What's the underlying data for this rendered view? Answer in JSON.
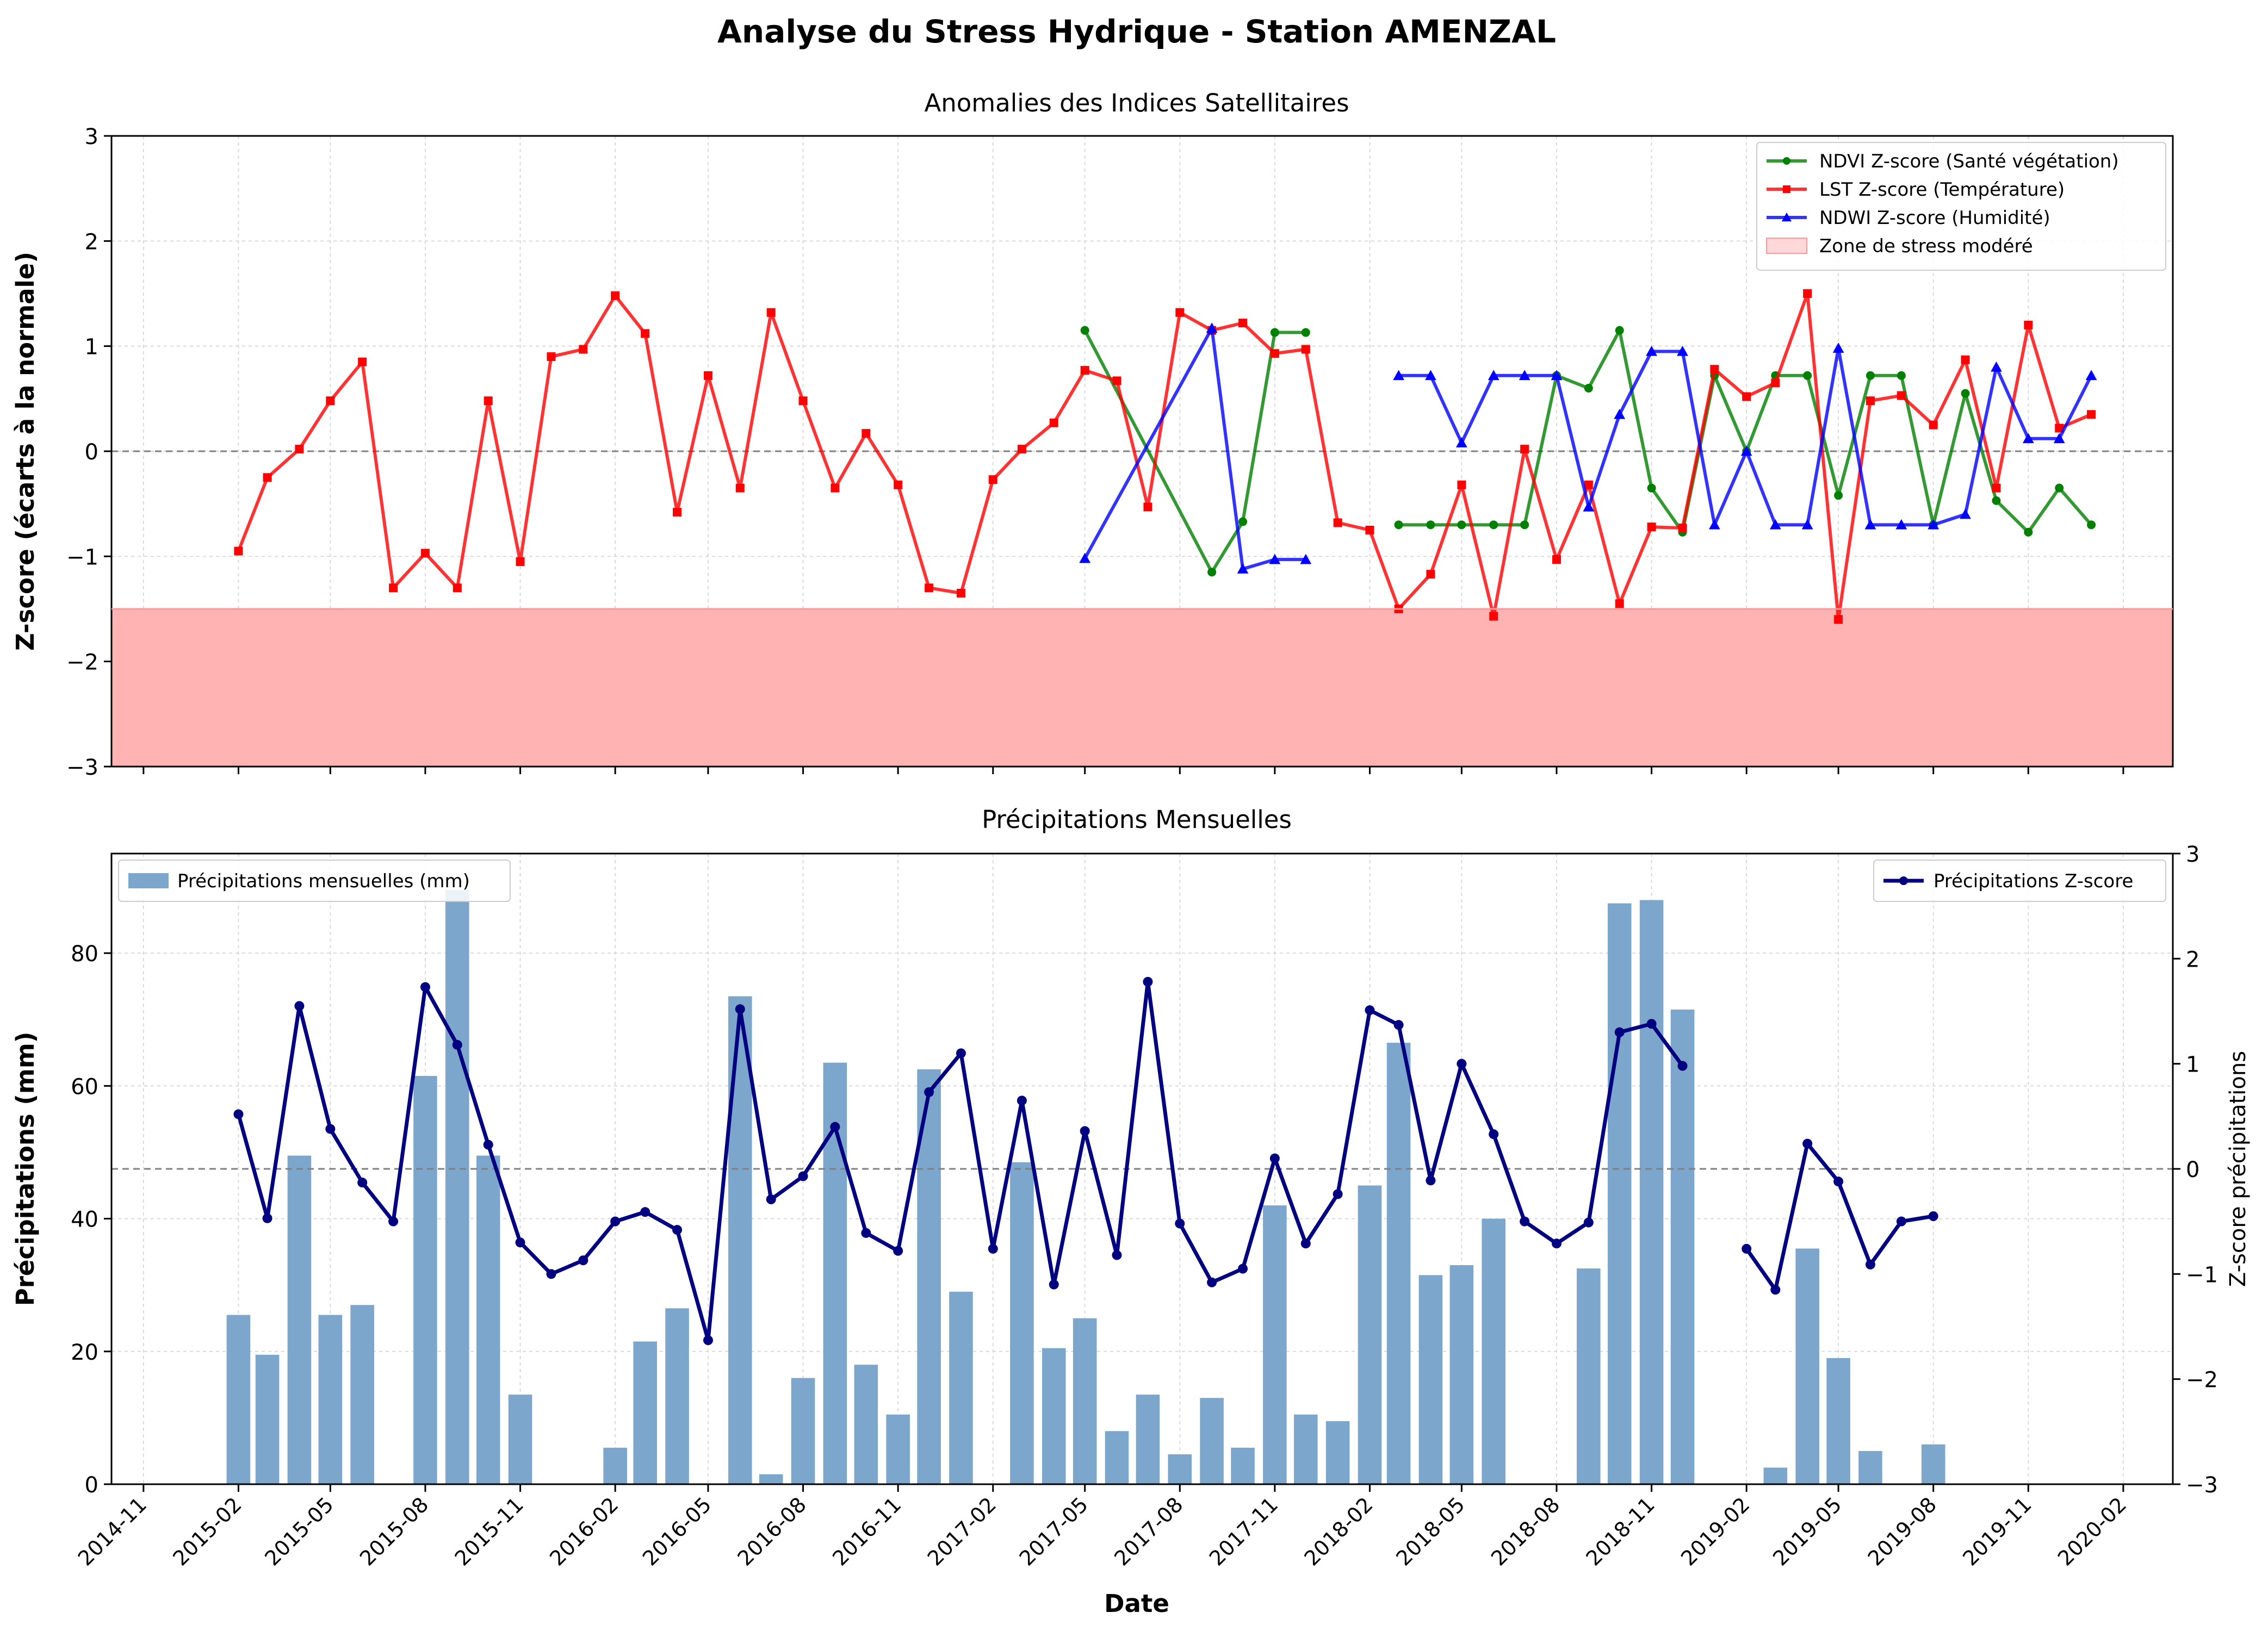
{
  "figure": {
    "suptitle": "Analyse du Stress Hydrique - Station AMENZAL"
  },
  "colors": {
    "ndvi": "#008000",
    "lst": "#ff0000",
    "ndwi": "#0000ff",
    "stress_zone": "#ffb3b3",
    "precip_bar": "#7ca6cc",
    "precip_z": "#000080",
    "zero_line": "#808080",
    "grid": "#d9d9d9"
  },
  "x_axis": {
    "label": "Date",
    "ticks": [
      "2014-11",
      "2015-02",
      "2015-05",
      "2015-08",
      "2015-11",
      "2016-02",
      "2016-05",
      "2016-08",
      "2016-11",
      "2017-02",
      "2017-05",
      "2017-08",
      "2017-11",
      "2018-02",
      "2018-05",
      "2018-08",
      "2018-11",
      "2019-02",
      "2019-05",
      "2019-08",
      "2019-11",
      "2020-02"
    ]
  },
  "chart_data": [
    {
      "type": "line",
      "title": "Anomalies des Indices Satellitaires",
      "xlabel": "",
      "ylabel": "Z-score (écarts à la normale)",
      "ylim": [
        -3,
        3
      ],
      "yticks": [
        -3,
        -2,
        -1,
        0,
        1,
        2,
        3
      ],
      "grid": true,
      "legend_position": "top-right",
      "stress_zone": {
        "label": "Zone de stress modéré",
        "range": [
          -3,
          -1.5
        ]
      },
      "reference_line": 0,
      "series": [
        {
          "name": "NDVI Z-score (Santé végétation)",
          "marker": "circle",
          "points": [
            [
              "2017-05-01",
              1.15
            ],
            [
              "2017-09-01",
              -1.15
            ],
            [
              "2017-10-01",
              -0.67
            ],
            [
              "2017-11-01",
              1.13
            ],
            [
              "2017-12-01",
              1.13
            ],
            [
              "2018-02-01",
              null
            ],
            [
              "2018-03-01",
              -0.7
            ],
            [
              "2018-04-01",
              -0.7
            ],
            [
              "2018-05-01",
              -0.7
            ],
            [
              "2018-06-01",
              -0.7
            ],
            [
              "2018-07-01",
              -0.7
            ],
            [
              "2018-08-01",
              0.72
            ],
            [
              "2018-09-01",
              0.6
            ],
            [
              "2018-10-01",
              1.15
            ],
            [
              "2018-11-01",
              -0.35
            ],
            [
              "2018-12-01",
              -0.77
            ],
            [
              "2019-01-01",
              0.72
            ],
            [
              "2019-02-01",
              0.0
            ],
            [
              "2019-03-01",
              0.72
            ],
            [
              "2019-04-01",
              0.72
            ],
            [
              "2019-05-01",
              -0.42
            ],
            [
              "2019-06-01",
              0.72
            ],
            [
              "2019-07-01",
              0.72
            ],
            [
              "2019-08-01",
              -0.7
            ],
            [
              "2019-09-01",
              0.55
            ],
            [
              "2019-10-01",
              -0.47
            ],
            [
              "2019-11-01",
              -0.77
            ],
            [
              "2019-12-01",
              -0.35
            ],
            [
              "2020-01-01",
              -0.7
            ]
          ]
        },
        {
          "name": "LST Z-score (Température)",
          "marker": "square",
          "points": [
            [
              "2015-02-01",
              -0.95
            ],
            [
              "2015-03-01",
              -0.25
            ],
            [
              "2015-04-01",
              0.02
            ],
            [
              "2015-05-01",
              0.48
            ],
            [
              "2015-06-01",
              0.85
            ],
            [
              "2015-07-01",
              -1.3
            ],
            [
              "2015-08-01",
              -0.97
            ],
            [
              "2015-09-01",
              -1.3
            ],
            [
              "2015-10-01",
              0.48
            ],
            [
              "2015-11-01",
              -1.05
            ],
            [
              "2015-12-01",
              0.9
            ],
            [
              "2016-01-01",
              0.97
            ],
            [
              "2016-02-01",
              1.48
            ],
            [
              "2016-03-01",
              1.12
            ],
            [
              "2016-04-01",
              -0.58
            ],
            [
              "2016-05-01",
              0.72
            ],
            [
              "2016-06-01",
              -0.35
            ],
            [
              "2016-07-01",
              1.32
            ],
            [
              "2016-08-01",
              0.48
            ],
            [
              "2016-09-01",
              -0.35
            ],
            [
              "2016-10-01",
              0.17
            ],
            [
              "2016-11-01",
              -0.32
            ],
            [
              "2016-12-01",
              -1.3
            ],
            [
              "2017-01-01",
              -1.35
            ],
            [
              "2017-02-01",
              -0.27
            ],
            [
              "2017-03-01",
              0.02
            ],
            [
              "2017-04-01",
              0.27
            ],
            [
              "2017-05-01",
              0.77
            ],
            [
              "2017-06-01",
              0.67
            ],
            [
              "2017-07-01",
              -0.53
            ],
            [
              "2017-08-01",
              1.32
            ],
            [
              "2017-09-01",
              1.15
            ],
            [
              "2017-10-01",
              1.22
            ],
            [
              "2017-11-01",
              0.93
            ],
            [
              "2017-12-01",
              0.97
            ],
            [
              "2018-01-01",
              -0.68
            ],
            [
              "2018-02-01",
              -0.75
            ],
            [
              "2018-03-01",
              -1.5
            ],
            [
              "2018-04-01",
              -1.17
            ],
            [
              "2018-05-01",
              -0.32
            ],
            [
              "2018-06-01",
              -1.57
            ],
            [
              "2018-07-01",
              0.02
            ],
            [
              "2018-08-01",
              -1.03
            ],
            [
              "2018-09-01",
              -0.32
            ],
            [
              "2018-10-01",
              -1.45
            ],
            [
              "2018-11-01",
              -0.72
            ],
            [
              "2018-12-01",
              -0.73
            ],
            [
              "2019-01-01",
              0.78
            ],
            [
              "2019-02-01",
              0.52
            ],
            [
              "2019-03-01",
              0.65
            ],
            [
              "2019-04-01",
              1.5
            ],
            [
              "2019-05-01",
              -1.6
            ],
            [
              "2019-06-01",
              0.48
            ],
            [
              "2019-07-01",
              0.53
            ],
            [
              "2019-08-01",
              0.25
            ],
            [
              "2019-09-01",
              0.87
            ],
            [
              "2019-10-01",
              -0.35
            ],
            [
              "2019-11-01",
              1.2
            ],
            [
              "2019-12-01",
              0.22
            ],
            [
              "2020-01-01",
              0.35
            ]
          ]
        },
        {
          "name": "NDWI Z-score (Humidité)",
          "marker": "triangle",
          "points": [
            [
              "2017-05-01",
              -1.02
            ],
            [
              "2017-09-01",
              1.17
            ],
            [
              "2017-10-01",
              -1.12
            ],
            [
              "2017-11-01",
              -1.03
            ],
            [
              "2017-12-01",
              -1.03
            ],
            [
              "2018-02-01",
              null
            ],
            [
              "2018-03-01",
              0.72
            ],
            [
              "2018-04-01",
              0.72
            ],
            [
              "2018-05-01",
              0.08
            ],
            [
              "2018-06-01",
              0.72
            ],
            [
              "2018-07-01",
              0.72
            ],
            [
              "2018-08-01",
              0.72
            ],
            [
              "2018-09-01",
              -0.53
            ],
            [
              "2018-10-01",
              0.35
            ],
            [
              "2018-11-01",
              0.95
            ],
            [
              "2018-12-01",
              0.95
            ],
            [
              "2019-01-01",
              -0.7
            ],
            [
              "2019-02-01",
              0.0
            ],
            [
              "2019-03-01",
              -0.7
            ],
            [
              "2019-04-01",
              -0.7
            ],
            [
              "2019-05-01",
              0.98
            ],
            [
              "2019-06-01",
              -0.7
            ],
            [
              "2019-07-01",
              -0.7
            ],
            [
              "2019-08-01",
              -0.7
            ],
            [
              "2019-09-01",
              -0.6
            ],
            [
              "2019-10-01",
              0.8
            ],
            [
              "2019-11-01",
              0.12
            ],
            [
              "2019-12-01",
              0.12
            ],
            [
              "2020-01-01",
              0.72
            ]
          ]
        }
      ]
    },
    {
      "type": "bar",
      "title": "Précipitations Mensuelles",
      "xlabel": "Date",
      "ylabel": "Précipitations (mm)",
      "ylim": [
        0,
        95
      ],
      "yticks": [
        0,
        20,
        40,
        60,
        80
      ],
      "grid": true,
      "legend_position": "top-left",
      "series": [
        {
          "name": "Précipitations mensuelles (mm)",
          "points": [
            [
              "2015-02-01",
              25.5
            ],
            [
              "2015-03-01",
              19.5
            ],
            [
              "2015-04-01",
              49.5
            ],
            [
              "2015-05-01",
              25.5
            ],
            [
              "2015-06-01",
              27.0
            ],
            [
              "2015-08-01",
              61.5
            ],
            [
              "2015-09-01",
              89.5
            ],
            [
              "2015-10-01",
              49.5
            ],
            [
              "2015-11-01",
              13.5
            ],
            [
              "2016-02-01",
              5.5
            ],
            [
              "2016-03-01",
              21.5
            ],
            [
              "2016-04-01",
              26.5
            ],
            [
              "2016-06-01",
              73.5
            ],
            [
              "2016-07-01",
              1.5
            ],
            [
              "2016-08-01",
              16.0
            ],
            [
              "2016-09-01",
              63.5
            ],
            [
              "2016-10-01",
              18.0
            ],
            [
              "2016-11-01",
              10.5
            ],
            [
              "2016-12-01",
              62.5
            ],
            [
              "2017-01-01",
              29.0
            ],
            [
              "2017-03-01",
              48.5
            ],
            [
              "2017-04-01",
              20.5
            ],
            [
              "2017-05-01",
              25.0
            ],
            [
              "2017-06-01",
              8.0
            ],
            [
              "2017-07-01",
              13.5
            ],
            [
              "2017-08-01",
              4.5
            ],
            [
              "2017-09-01",
              13.0
            ],
            [
              "2017-10-01",
              5.5
            ],
            [
              "2017-11-01",
              42.0
            ],
            [
              "2017-12-01",
              10.5
            ],
            [
              "2018-01-01",
              9.5
            ],
            [
              "2018-02-01",
              45.0
            ],
            [
              "2018-03-01",
              66.5
            ],
            [
              "2018-04-01",
              31.5
            ],
            [
              "2018-05-01",
              33.0
            ],
            [
              "2018-06-01",
              40.0
            ],
            [
              "2018-09-01",
              32.5
            ],
            [
              "2018-10-01",
              87.5
            ],
            [
              "2018-11-01",
              88.0
            ],
            [
              "2018-12-01",
              71.5
            ],
            [
              "2019-03-01",
              2.5
            ],
            [
              "2019-04-01",
              35.5
            ],
            [
              "2019-05-01",
              19.0
            ],
            [
              "2019-06-01",
              5.0
            ],
            [
              "2019-08-01",
              6.0
            ]
          ]
        }
      ],
      "secondary_axis": {
        "ylabel": "Z-score précipitations",
        "ylim": [
          -3,
          3
        ],
        "yticks": [
          -3,
          -2,
          -1,
          0,
          1,
          2,
          3
        ],
        "legend_position": "top-right",
        "reference_line": 0,
        "series": [
          {
            "name": "Précipitations Z-score",
            "marker": "circle",
            "points": [
              [
                "2015-02-01",
                0.52
              ],
              [
                "2015-03-01",
                -0.47
              ],
              [
                "2015-04-01",
                1.55
              ],
              [
                "2015-05-01",
                0.38
              ],
              [
                "2015-06-01",
                -0.13
              ],
              [
                "2015-07-01",
                -0.5
              ],
              [
                "2015-08-01",
                1.73
              ],
              [
                "2015-09-01",
                1.18
              ],
              [
                "2015-10-01",
                0.23
              ],
              [
                "2015-11-01",
                -0.7
              ],
              [
                "2015-12-01",
                -1.0
              ],
              [
                "2016-01-01",
                -0.87
              ],
              [
                "2016-02-01",
                -0.5
              ],
              [
                "2016-03-01",
                -0.41
              ],
              [
                "2016-04-01",
                -0.58
              ],
              [
                "2016-05-01",
                -1.63
              ],
              [
                "2016-06-01",
                1.52
              ],
              [
                "2016-07-01",
                -0.29
              ],
              [
                "2016-08-01",
                -0.07
              ],
              [
                "2016-09-01",
                0.4
              ],
              [
                "2016-10-01",
                -0.61
              ],
              [
                "2016-11-01",
                -0.78
              ],
              [
                "2016-12-01",
                0.73
              ],
              [
                "2017-01-01",
                1.1
              ],
              [
                "2017-02-01",
                -0.76
              ],
              [
                "2017-03-01",
                0.65
              ],
              [
                "2017-04-01",
                -1.1
              ],
              [
                "2017-05-01",
                0.36
              ],
              [
                "2017-06-01",
                -0.82
              ],
              [
                "2017-07-01",
                1.78
              ],
              [
                "2017-08-01",
                -0.52
              ],
              [
                "2017-09-01",
                -1.08
              ],
              [
                "2017-10-01",
                -0.95
              ],
              [
                "2017-11-01",
                0.1
              ],
              [
                "2017-12-01",
                -0.71
              ],
              [
                "2018-01-01",
                -0.24
              ],
              [
                "2018-02-01",
                1.51
              ],
              [
                "2018-03-01",
                1.37
              ],
              [
                "2018-04-01",
                -0.11
              ],
              [
                "2018-05-01",
                1.0
              ],
              [
                "2018-06-01",
                0.33
              ],
              [
                "2018-07-01",
                -0.5
              ],
              [
                "2018-08-01",
                -0.71
              ],
              [
                "2018-09-01",
                -0.51
              ],
              [
                "2018-10-01",
                1.3
              ],
              [
                "2018-11-01",
                1.38
              ],
              [
                "2018-12-01",
                0.98
              ],
              [
                "2019-01-01",
                null
              ],
              [
                "2019-02-01",
                -0.76
              ],
              [
                "2019-03-01",
                -1.15
              ],
              [
                "2019-04-01",
                0.24
              ],
              [
                "2019-05-01",
                -0.12
              ],
              [
                "2019-06-01",
                -0.91
              ],
              [
                "2019-07-01",
                -0.5
              ],
              [
                "2019-08-01",
                -0.45
              ]
            ]
          }
        ]
      }
    }
  ]
}
